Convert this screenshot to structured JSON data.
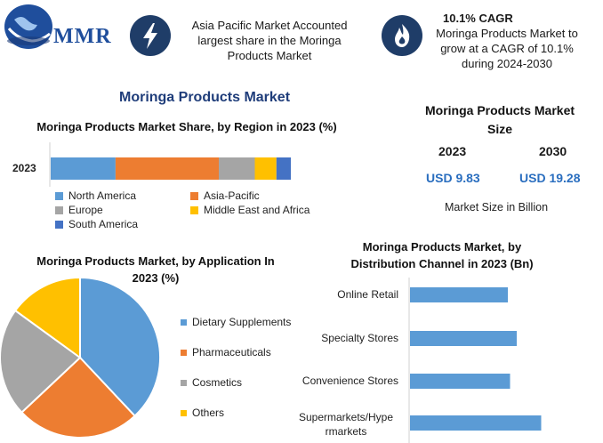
{
  "header": {
    "logo_text": "MMR",
    "stat1_text": "Asia Pacific Market Accounted largest share in the Moringa Products Market",
    "stat2_title": "10.1% CAGR",
    "stat2_text": "Moringa Products Market to grow at a CAGR of 10.1% during 2024-2030",
    "icons": [
      "globe-icon",
      "lightning-icon",
      "flame-icon"
    ],
    "accent_color": "#1f3d68"
  },
  "main_title": "Moringa Products Market",
  "market_size": {
    "title": "Moringa Products Market Size",
    "years": [
      "2023",
      "2030"
    ],
    "values": [
      "USD 9.83",
      "USD 19.28"
    ],
    "footer": "Market Size in Billion"
  },
  "chart_data": [
    {
      "type": "bar",
      "orientation": "horizontal-stacked",
      "title": "Moringa Products Market Share, by Region in 2023 (%)",
      "categories": [
        "2023"
      ],
      "series": [
        {
          "name": "North America",
          "values": [
            27
          ],
          "color": "#5b9bd5"
        },
        {
          "name": "Asia-Pacific",
          "values": [
            43
          ],
          "color": "#ed7d31"
        },
        {
          "name": "Europe",
          "values": [
            15
          ],
          "color": "#a5a5a5"
        },
        {
          "name": "Middle East and Africa",
          "values": [
            9
          ],
          "color": "#ffc000"
        },
        {
          "name": "South America",
          "values": [
            6
          ],
          "color": "#4472c4"
        }
      ],
      "legend": "bottom"
    },
    {
      "type": "pie",
      "title": "Moringa Products Market, by Application In 2023 (%)",
      "labels": [
        "Dietary Supplements",
        "Pharmaceuticals",
        "Cosmetics",
        "Others"
      ],
      "values": [
        38,
        25,
        22,
        15
      ],
      "colors": [
        "#5b9bd5",
        "#ed7d31",
        "#a5a5a5",
        "#ffc000"
      ],
      "legend": "right"
    },
    {
      "type": "bar",
      "orientation": "horizontal",
      "title": "Moringa Products Market, by Distribution Channel in 2023 (Bn)",
      "categories": [
        "Online Retail",
        "Specialty Stores",
        "Convenience Stores",
        "Supermarkets/Hypermarkets"
      ],
      "category_display": [
        "Online Retail",
        "Specialty Stores",
        "Convenience Stores",
        "Supermarkets/Hype rmarkets"
      ],
      "values": [
        2.2,
        2.4,
        2.25,
        2.95
      ],
      "color": "#5b9bd5",
      "xlim": [
        0,
        4.2
      ]
    }
  ]
}
